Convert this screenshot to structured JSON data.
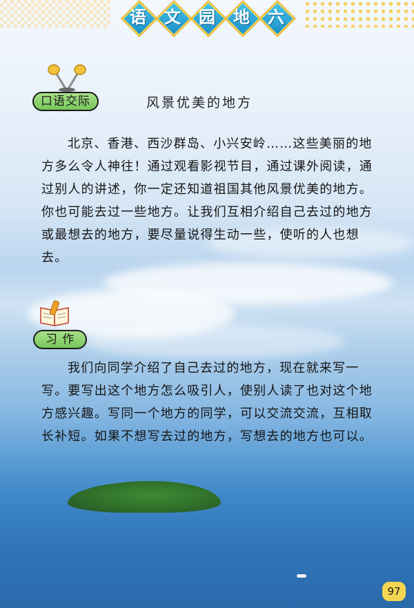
{
  "header": {
    "title_chars": [
      "语",
      "文",
      "园",
      "地",
      "六"
    ]
  },
  "oral_section": {
    "badge": "口语交际",
    "title": "风景优美的地方",
    "paragraph": "北京、香港、西沙群岛、小兴安岭……这些美丽的地方多么令人神往！通过观看影视节目，通过课外阅读，通过别人的讲述，你一定还知道祖国其他风景优美的地方。你也可能去过一些地方。让我们互相介绍自己去过的地方或最想去的地方，要尽量说得生动一些，使听的人也想去。"
  },
  "writing_section": {
    "badge": "习 作",
    "paragraph": "我们向同学介绍了自己去过的地方，现在就来写一写。要写出这个地方怎么吸引人，使别人读了也对这个地方感兴趣。写同一个地方的同学，可以交流交流，互相取长补短。如果不想写去过的地方，写想去的地方也可以。"
  },
  "icons": {
    "oral": "microphone-icon",
    "writing": "book-pencil-icon"
  },
  "page_number": "97",
  "colors": {
    "badge_green": "#8fd46f",
    "tile_blue": "#2aa7dc",
    "tile_border": "#f5d24a",
    "page_num_bg": "#f4d650"
  }
}
